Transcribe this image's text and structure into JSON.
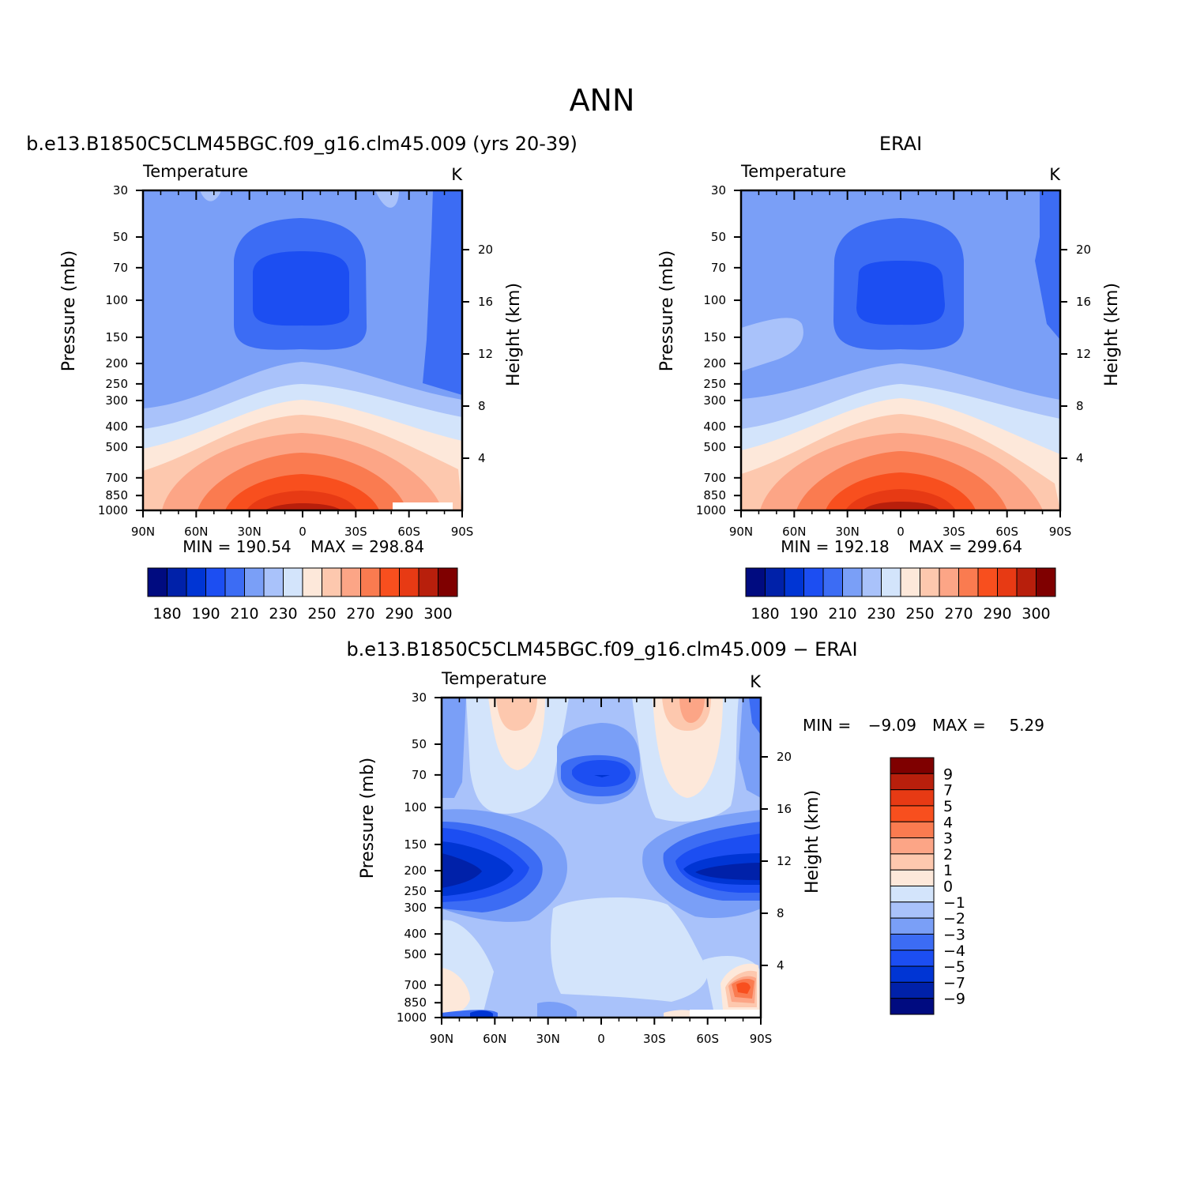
{
  "figure": {
    "title": "ANN",
    "units": "K",
    "variable": "Temperature",
    "pressure_axis_label": "Pressure (mb)",
    "height_axis_label": "Height (km)"
  },
  "palette": {
    "temperature": [
      "#000b80",
      "#0021a9",
      "#0035d4",
      "#1c4ef2",
      "#3c6cf4",
      "#7a9ff7",
      "#a9c2fa",
      "#d3e4fb",
      "#fde8da",
      "#fdc8ae",
      "#fca586",
      "#fa7b50",
      "#f84f1e",
      "#e73a14",
      "#b81f0c",
      "#7f0000"
    ],
    "difference": [
      "#000b80",
      "#0021a9",
      "#0035d4",
      "#1c4ef2",
      "#3c6cf4",
      "#7a9ff7",
      "#a9c2fa",
      "#d3e4fb",
      "#fde8da",
      "#fdc8ae",
      "#fca586",
      "#fa7b50",
      "#f84f1e",
      "#e73a14",
      "#b81f0c",
      "#7f0000"
    ]
  },
  "chart_data": [
    {
      "type": "heatmap",
      "panel_title": "b.e13.B1850C5CLM45BGC.f09_g16.clm45.009 (yrs 20-39)",
      "left_label": "Temperature",
      "right_label": "K",
      "xlabel": "",
      "ylabel": "Pressure (mb)",
      "y2label": "Height (km)",
      "x_ticks": [
        "90N",
        "60N",
        "30N",
        "0",
        "30S",
        "60S",
        "90S"
      ],
      "x_range": [
        90,
        -90
      ],
      "y_ticks": [
        30,
        50,
        70,
        100,
        150,
        200,
        250,
        300,
        400,
        500,
        700,
        850,
        1000
      ],
      "y_range_mb": [
        1000,
        30
      ],
      "y_scale": "log",
      "height_ticks_km": [
        4,
        8,
        12,
        16,
        20
      ],
      "min_label": "MIN = 190.54",
      "max_label": "MAX = 298.84",
      "colorbar_labels": [
        "180",
        "190",
        "210",
        "230",
        "250",
        "270",
        "290",
        "300"
      ],
      "grid": false
    },
    {
      "type": "heatmap",
      "panel_title": "ERAI",
      "left_label": "Temperature",
      "right_label": "K",
      "xlabel": "",
      "ylabel": "Pressure (mb)",
      "y2label": "Height (km)",
      "x_ticks": [
        "90N",
        "60N",
        "30N",
        "0",
        "30S",
        "60S",
        "90S"
      ],
      "x_range": [
        90,
        -90
      ],
      "y_ticks": [
        30,
        50,
        70,
        100,
        150,
        200,
        250,
        300,
        400,
        500,
        700,
        850,
        1000
      ],
      "y_range_mb": [
        1000,
        30
      ],
      "y_scale": "log",
      "height_ticks_km": [
        4,
        8,
        12,
        16,
        20
      ],
      "min_label": "MIN = 192.18",
      "max_label": "MAX = 299.64",
      "colorbar_labels": [
        "180",
        "190",
        "210",
        "230",
        "250",
        "270",
        "290",
        "300"
      ],
      "grid": false
    },
    {
      "type": "heatmap",
      "panel_title": "b.e13.B1850C5CLM45BGC.f09_g16.clm45.009 − ERAI",
      "left_label": "Temperature",
      "right_label": "K",
      "xlabel": "",
      "ylabel": "Pressure (mb)",
      "y2label": "Height (km)",
      "x_ticks": [
        "90N",
        "60N",
        "30N",
        "0",
        "30S",
        "60S",
        "90S"
      ],
      "x_range": [
        90,
        -90
      ],
      "y_ticks": [
        30,
        50,
        70,
        100,
        150,
        200,
        250,
        300,
        400,
        500,
        700,
        850,
        1000
      ],
      "y_range_mb": [
        1000,
        30
      ],
      "y_scale": "log",
      "height_ticks_km": [
        4,
        8,
        12,
        16,
        20
      ],
      "min_label": "MIN =",
      "min_value": "−9.09",
      "max_label": "MAX =",
      "max_value": "5.29",
      "colorbar_labels": [
        "9",
        "7",
        "5",
        "4",
        "3",
        "2",
        "1",
        "0",
        "−1",
        "−2",
        "−3",
        "−4",
        "−5",
        "−7",
        "−9"
      ],
      "grid": false
    }
  ]
}
